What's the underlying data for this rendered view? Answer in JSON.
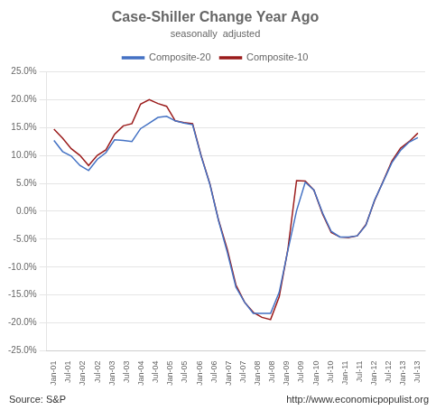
{
  "chart_data": {
    "type": "line",
    "title": "Case-Shiller Change Year Ago",
    "subtitle": "seasonally  adjusted",
    "annotations": [
      "Source: S&P",
      "http://www.economicpopulist.org"
    ],
    "x": [
      0,
      0.595238,
      1.190476,
      1.785714,
      2.380952,
      2.97619,
      3.571429,
      4.166667,
      4.761905,
      5.357143,
      5.952381,
      6.547619,
      7.142857,
      7.738095,
      8.333333,
      8.928571,
      9.52381,
      10.119048,
      10.714286,
      11.309524,
      11.904762,
      12.5,
      13.095238,
      13.690476,
      14.285714,
      14.880952,
      15.47619,
      16.071429,
      16.666667,
      17.261905,
      17.857143,
      18.452381,
      19.047619,
      19.642857,
      20.238095,
      20.833333,
      21.428571,
      22.02381,
      22.619048,
      23.214286,
      23.809524,
      24.404762,
      25
    ],
    "series": [
      {
        "name": "Composite-20",
        "color": "#4472C4",
        "values": [
          0.127,
          0.107,
          0.099,
          0.082,
          0.073,
          0.093,
          0.105,
          0.128,
          0.127,
          0.125,
          0.148,
          0.158,
          0.168,
          0.17,
          0.162,
          0.158,
          0.155,
          0.098,
          0.048,
          -0.017,
          -0.073,
          -0.136,
          -0.163,
          -0.183,
          -0.183,
          -0.183,
          -0.145,
          -0.07,
          0.001,
          0.052,
          0.038,
          -0.003,
          -0.036,
          -0.046,
          -0.046,
          -0.044,
          -0.025,
          0.02,
          0.053,
          0.087,
          0.109,
          0.124,
          0.132
        ]
      },
      {
        "name": "Composite-10",
        "color": "#9B1B1B",
        "values": [
          0.147,
          0.131,
          0.112,
          0.1,
          0.082,
          0.1,
          0.11,
          0.138,
          0.153,
          0.157,
          0.192,
          0.2,
          0.193,
          0.188,
          0.162,
          0.159,
          0.157,
          0.099,
          0.049,
          -0.016,
          -0.068,
          -0.132,
          -0.163,
          -0.181,
          -0.19,
          -0.194,
          -0.153,
          -0.068,
          0.055,
          0.054,
          0.038,
          -0.005,
          -0.038,
          -0.046,
          -0.047,
          -0.044,
          -0.024,
          0.019,
          0.054,
          0.09,
          0.113,
          0.125,
          0.14
        ]
      }
    ],
    "xlim": [
      -0.5,
      25.5
    ],
    "xticks": [
      {
        "value": 0,
        "label": "Jan-01"
      },
      {
        "value": 1,
        "label": "Jul-01"
      },
      {
        "value": 2,
        "label": "Jan-02"
      },
      {
        "value": 3,
        "label": "Jul-02"
      },
      {
        "value": 4,
        "label": "Jan-03"
      },
      {
        "value": 5,
        "label": "Jul-03"
      },
      {
        "value": 6,
        "label": "Jan-04"
      },
      {
        "value": 7,
        "label": "Jul-04"
      },
      {
        "value": 8,
        "label": "Jan-05"
      },
      {
        "value": 9,
        "label": "Jul-05"
      },
      {
        "value": 10,
        "label": "Jan-06"
      },
      {
        "value": 11,
        "label": "Jul-06"
      },
      {
        "value": 12,
        "label": "Jan-07"
      },
      {
        "value": 13,
        "label": "Jul-07"
      },
      {
        "value": 14,
        "label": "Jan-08"
      },
      {
        "value": 15,
        "label": "Jul-08"
      },
      {
        "value": 16,
        "label": "Jan-09"
      },
      {
        "value": 17,
        "label": "Jul-09"
      },
      {
        "value": 18,
        "label": "Jan-10"
      },
      {
        "value": 19,
        "label": "Jul-10"
      },
      {
        "value": 20,
        "label": "Jan-11"
      },
      {
        "value": 21,
        "label": "Jul-11"
      },
      {
        "value": 22,
        "label": "Jan-12"
      },
      {
        "value": 23,
        "label": "Jul-12"
      },
      {
        "value": 24,
        "label": "Jan-13"
      },
      {
        "value": 25,
        "label": "Jul-13"
      }
    ],
    "ylim": [
      -0.25,
      0.25
    ],
    "yticks": [
      {
        "value": -0.25,
        "label": "-25.0%"
      },
      {
        "value": -0.2,
        "label": "-20.0%"
      },
      {
        "value": -0.15,
        "label": "-15.0%"
      },
      {
        "value": -0.1,
        "label": "-10.0%"
      },
      {
        "value": -0.05,
        "label": "-5.0%"
      },
      {
        "value": 0.0,
        "label": "0.0%"
      },
      {
        "value": 0.05,
        "label": "5.0%"
      },
      {
        "value": 0.1,
        "label": "10.0%"
      },
      {
        "value": 0.15,
        "label": "15.0%"
      },
      {
        "value": 0.2,
        "label": "20.0%"
      },
      {
        "value": 0.25,
        "label": "25.0%"
      }
    ],
    "grid": true,
    "legend": "top"
  }
}
